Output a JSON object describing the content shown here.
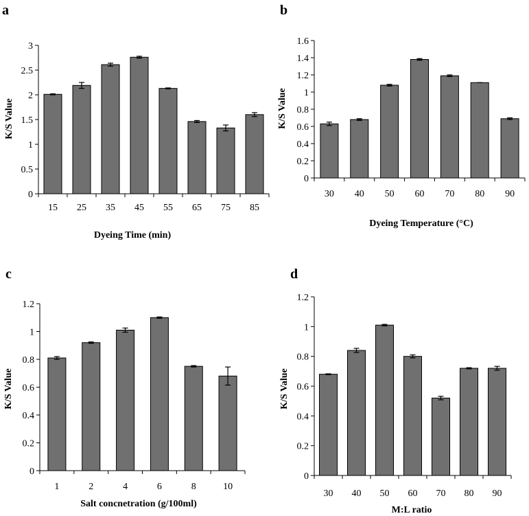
{
  "figure": {
    "background": "#ffffff"
  },
  "colors": {
    "bar_fill": "#707070",
    "bar_stroke": "#000000",
    "axis": "#000000",
    "error_bar": "#000000"
  },
  "chart_data": [
    {
      "type": "bar",
      "panel": "a",
      "title": "",
      "xlabel": "Dyeing Time (min)",
      "ylabel": "K/S Value",
      "categories": [
        "15",
        "25",
        "35",
        "45",
        "55",
        "65",
        "75",
        "85"
      ],
      "values": [
        2.01,
        2.19,
        2.61,
        2.76,
        2.13,
        1.46,
        1.33,
        1.6
      ],
      "errors": [
        0.01,
        0.06,
        0.03,
        0.02,
        0.01,
        0.02,
        0.06,
        0.04
      ],
      "ylim": [
        0,
        3
      ],
      "yticks": [
        "0",
        "0.5",
        "1",
        "1.5",
        "2",
        "2.5",
        "3"
      ],
      "yticks_values": [
        0,
        0.5,
        1,
        1.5,
        2,
        2.5,
        3
      ],
      "grid": false,
      "legend": "none"
    },
    {
      "type": "bar",
      "panel": "b",
      "title": "",
      "xlabel": "Dyeing Temperature (°C)",
      "ylabel": "K/S Value",
      "categories": [
        "30",
        "40",
        "50",
        "60",
        "70",
        "80",
        "90"
      ],
      "values": [
        0.63,
        0.68,
        1.08,
        1.38,
        1.19,
        1.11,
        0.69
      ],
      "errors": [
        0.02,
        0.01,
        0.01,
        0.01,
        0.01,
        0.0,
        0.01
      ],
      "ylim": [
        0,
        1.6
      ],
      "yticks": [
        "0",
        "0.2",
        "0.4",
        "0.6",
        "0.8",
        "1",
        "1.2",
        "1.4",
        "1.6"
      ],
      "yticks_values": [
        0,
        0.2,
        0.4,
        0.6,
        0.8,
        1,
        1.2,
        1.4,
        1.6
      ],
      "grid": false,
      "legend": "none"
    },
    {
      "type": "bar",
      "panel": "c",
      "title": "",
      "xlabel": "Salt concnetration (g/100ml)",
      "ylabel": "K/S Value",
      "categories": [
        "1",
        "2",
        "4",
        "6",
        "8",
        "10"
      ],
      "values": [
        0.81,
        0.92,
        1.01,
        1.1,
        0.75,
        0.68
      ],
      "errors": [
        0.01,
        0.005,
        0.015,
        0.005,
        0.005,
        0.065
      ],
      "ylim": [
        0,
        1.2
      ],
      "yticks": [
        "0",
        "0.2",
        "0.4",
        "0.6",
        "0.8",
        "1",
        "1.2"
      ],
      "yticks_values": [
        0,
        0.2,
        0.4,
        0.6,
        0.8,
        1,
        1.2
      ],
      "grid": false,
      "legend": "none"
    },
    {
      "type": "bar",
      "panel": "d",
      "title": "",
      "xlabel": "M:L ratio",
      "ylabel": "K/S Value",
      "categories": [
        "30",
        "40",
        "50",
        "60",
        "70",
        "80",
        "90"
      ],
      "values": [
        0.68,
        0.84,
        1.01,
        0.8,
        0.52,
        0.72,
        0.72
      ],
      "errors": [
        0.003,
        0.014,
        0.005,
        0.01,
        0.012,
        0.004,
        0.013
      ],
      "ylim": [
        0,
        1.2
      ],
      "yticks": [
        "0",
        "0.2",
        "0.4",
        "0.6",
        "0.8",
        "1",
        "1.2"
      ],
      "yticks_values": [
        0,
        0.2,
        0.4,
        0.6,
        0.8,
        1,
        1.2
      ],
      "grid": false,
      "legend": "none"
    }
  ]
}
